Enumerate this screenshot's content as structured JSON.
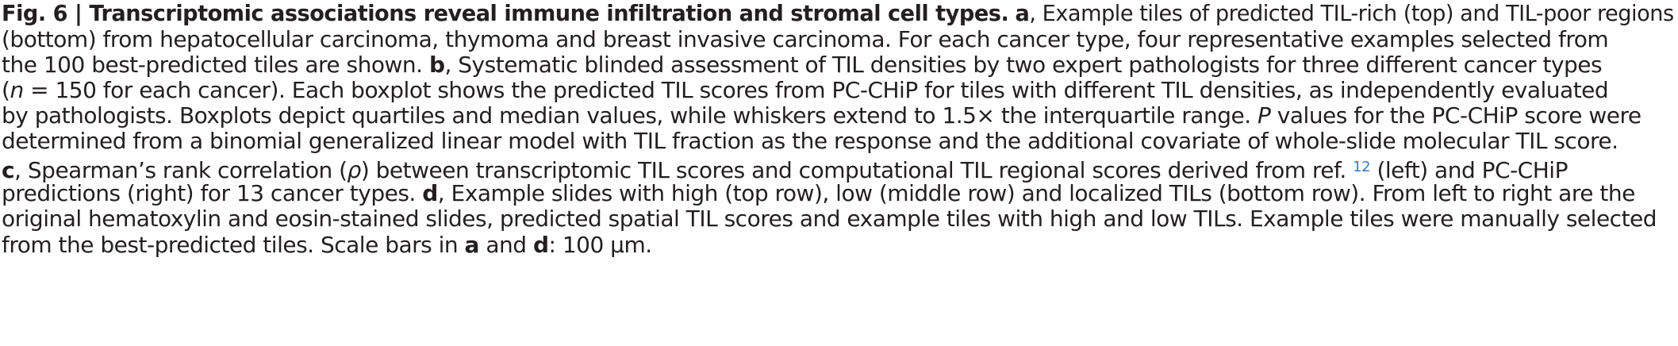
{
  "caption": {
    "l1": {
      "fig": "Fig. 6 | Transcriptomic associations reveal immune infiltration and stromal cell types.",
      "a": "a",
      "t": ", Example tiles of predicted TIL-rich (top) and TIL-poor regions"
    },
    "l2": {
      "t": "(bottom) from hepatocellular carcinoma, thymoma and breast invasive carcinoma. For each cancer type, four representative examples selected from"
    },
    "l3": {
      "t1": "the 100 best-predicted tiles are shown. ",
      "b": "b",
      "t2": ", Systematic blinded assessment of TIL densities by two expert pathologists for three different cancer types"
    },
    "l4": {
      "p": "(",
      "n": "n",
      "t": " = 150 for each cancer). Each boxplot shows the predicted TIL scores from PC-CHiP for tiles with different TIL densities, as independently evaluated"
    },
    "l5": {
      "t1": "by pathologists. Boxplots depict quartiles and median values, while whiskers extend to 1.5× the interquartile range. ",
      "P": "P",
      "t2": " values for the PC-CHiP score were"
    },
    "l6": {
      "t": "determined from a binomial generalized linear model with TIL fraction as the response and the additional covariate of whole-slide molecular TIL score."
    },
    "l7": {
      "c": "c",
      "t1": ", Spearman’s rank correlation (",
      "rho": "ρ",
      "t2": ") between transcriptomic TIL scores and computational TIL regional scores derived from ref. ",
      "ref": "12",
      "t3": " (left) and PC-CHiP"
    },
    "l8": {
      "t1": "predictions (right) for 13 cancer types. ",
      "d": "d",
      "t2": ", Example slides with high (top row), low (middle row) and localized TILs (bottom row). From left to right are the"
    },
    "l9": {
      "t": "original hematoxylin and eosin-stained slides, predicted spatial TIL scores and example tiles with high and low TILs. Example tiles were manually selected"
    },
    "l10": {
      "t1": "from the best-predicted tiles. Scale bars in ",
      "a": "a",
      "t2": " and ",
      "d": "d",
      "t3": ": 100 μm."
    }
  }
}
